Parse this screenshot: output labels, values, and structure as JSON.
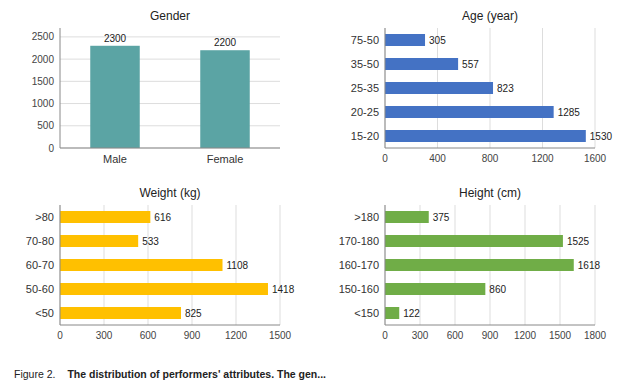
{
  "chart_data": [
    {
      "type": "bar",
      "title": "Gender",
      "categories": [
        "Male",
        "Female"
      ],
      "values": [
        2300,
        2200
      ],
      "color": "#5BA4A4",
      "ylim": [
        0,
        2700
      ],
      "yticks": [
        0,
        500,
        1000,
        1500,
        2000,
        2500
      ],
      "grid": true,
      "data_labels": true
    },
    {
      "type": "bar",
      "orientation": "horizontal",
      "title": "Age (year)",
      "categories": [
        "75-50",
        "35-50",
        "25-35",
        "20-25",
        "15-20"
      ],
      "values": [
        305,
        557,
        823,
        1285,
        1530
      ],
      "color": "#4472C4",
      "xlim": [
        0,
        1600
      ],
      "xticks": [
        0,
        400,
        800,
        1200,
        1600
      ],
      "grid": true,
      "data_labels": true
    },
    {
      "type": "bar",
      "orientation": "horizontal",
      "title": "Weight (kg)",
      "categories": [
        ">80",
        "70-80",
        "60-70",
        "50-60",
        "<50"
      ],
      "values": [
        616,
        533,
        1108,
        1418,
        825
      ],
      "color": "#FFC000",
      "xlim": [
        0,
        1500
      ],
      "xticks": [
        0,
        300,
        600,
        900,
        1200,
        1500
      ],
      "grid": true,
      "data_labels": true
    },
    {
      "type": "bar",
      "orientation": "horizontal",
      "title": "Height (cm)",
      "categories": [
        ">180",
        "170-180",
        "160-170",
        "150-160",
        "<150"
      ],
      "values": [
        375,
        1525,
        1618,
        860,
        122
      ],
      "color": "#70AD47",
      "xlim": [
        0,
        1800
      ],
      "xticks": [
        0,
        300,
        600,
        900,
        1200,
        1500,
        1800
      ],
      "grid": true,
      "data_labels": true
    }
  ],
  "caption": {
    "label": "Figure 2.",
    "text": "The distribution of performers' attributes.  The gen..."
  }
}
